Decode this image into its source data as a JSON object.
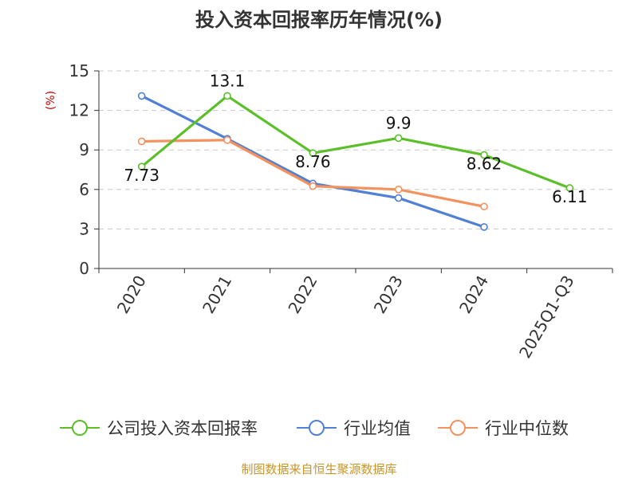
{
  "chart_data": {
    "type": "line",
    "title": "投入资本回报率历年情况(%)",
    "ylabel": "(%)",
    "categories": [
      "2020",
      "2021",
      "2022",
      "2023",
      "2024",
      "2025Q1-Q3"
    ],
    "ylim": [
      0,
      15
    ],
    "yticks": [
      0,
      3,
      6,
      9,
      12,
      15
    ],
    "grid": true,
    "legend_position": "bottom",
    "series": [
      {
        "name": "公司投入资本回报率",
        "color": "#5bbf2a",
        "values": [
          7.73,
          13.1,
          8.76,
          9.9,
          8.62,
          6.11
        ],
        "labels": [
          "7.73",
          "13.1",
          "8.76",
          "9.9",
          "8.62",
          "6.11"
        ]
      },
      {
        "name": "行业均值",
        "color": "#4f80d6",
        "values": [
          13.1,
          9.85,
          6.45,
          5.35,
          3.15,
          null
        ]
      },
      {
        "name": "行业中位数",
        "color": "#f4925e",
        "values": [
          9.65,
          9.75,
          6.25,
          6.0,
          4.7,
          null
        ]
      }
    ]
  },
  "source": "制图数据来自恒生聚源数据库"
}
